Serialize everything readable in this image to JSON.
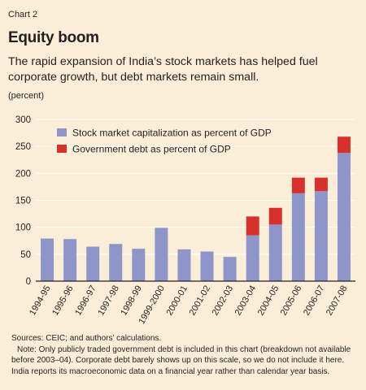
{
  "header": {
    "chart_number": "Chart 2",
    "title": "Equity boom",
    "subtitle": "The rapid expansion of India’s stock markets has helped fuel corporate growth, but debt markets remain small.",
    "unit": "(percent)"
  },
  "footer": {
    "source": "Sources: CEIC; and authors’ calculations.",
    "note": "Note: Only publicly traded government debt is included in this chart (breakdown not available before 2003–04). Corporate debt barely shows up on this scale, so we do not include it here. India reports its macroeconomic data on a financial year rather than calendar year basis."
  },
  "colors": {
    "background": "#fbeed8",
    "stock": "#8e96c9",
    "debt": "#d6322b",
    "grid": "#ffffff"
  },
  "chart_data": {
    "type": "bar",
    "stacked": true,
    "categories": [
      "1994-95",
      "1995-96",
      "1996-97",
      "1997-98",
      "1998-99",
      "1999-2000",
      "2000-01",
      "2001-02",
      "2002-03",
      "2003-04",
      "2004-05",
      "2005-06",
      "2006-07",
      "2007-08"
    ],
    "series": [
      {
        "name": "Stock market capitalization as percent of GDP",
        "color": "#8e96c9",
        "values": [
          79,
          78,
          64,
          69,
          60,
          99,
          59,
          55,
          45,
          85,
          105,
          163,
          167,
          238
        ]
      },
      {
        "name": "Government debt as percent of GDP",
        "color": "#d6322b",
        "values": [
          0,
          0,
          0,
          0,
          0,
          0,
          0,
          0,
          0,
          35,
          31,
          29,
          25,
          30
        ]
      }
    ],
    "ylim": [
      0,
      300
    ],
    "yticks": [
      0,
      50,
      100,
      150,
      200,
      250,
      300
    ],
    "grid": true,
    "legend": "top-left"
  }
}
